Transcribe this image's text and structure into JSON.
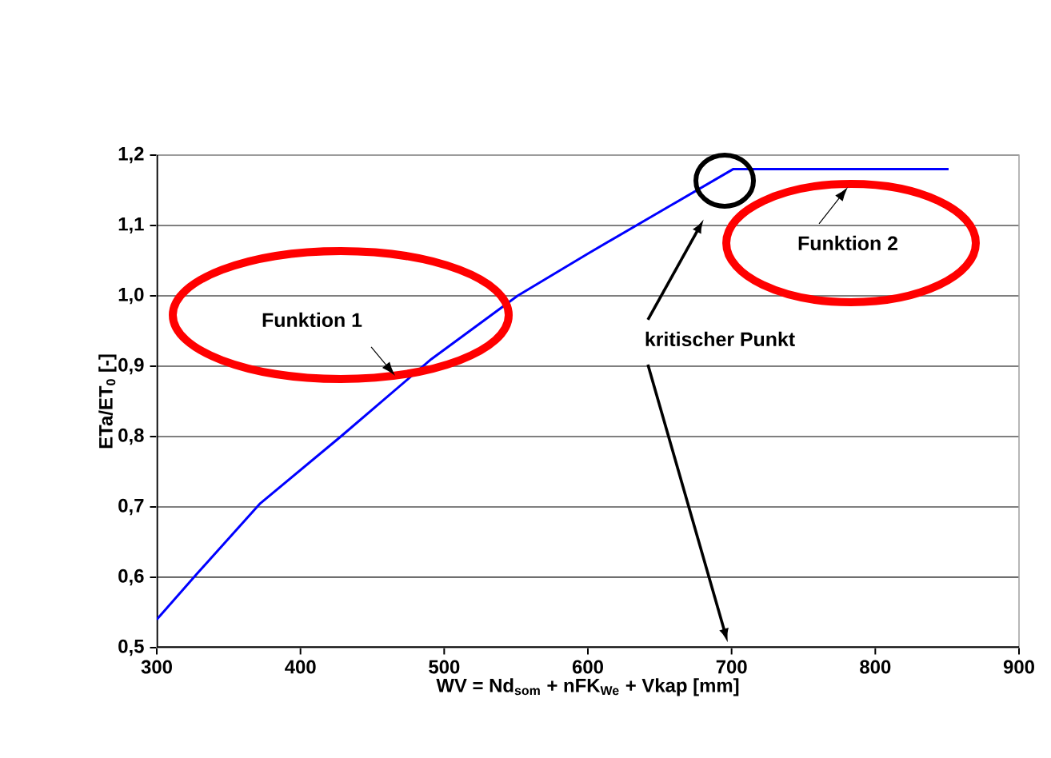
{
  "chart_data": {
    "type": "line",
    "xlabel": "WV = Nd$_{som}$ + nFK$_{We}$ + Vkap [mm]",
    "ylabel": "ETa/ET$_{0}$   [-]",
    "x": [
      300,
      328,
      372,
      428,
      491,
      551,
      600,
      659,
      701,
      851
    ],
    "series": [
      {
        "color": "#0000ff",
        "values": [
          0.54,
          0.605,
          0.705,
          0.8,
          0.91,
          1.0,
          1.06,
          1.13,
          1.18,
          1.18
        ]
      }
    ],
    "xlim": [
      300,
      900
    ],
    "ylim": [
      0.5,
      1.2
    ],
    "xticks": [
      300,
      400,
      500,
      600,
      700,
      800,
      900
    ],
    "yticks": [
      {
        "value": 0.5,
        "label": "0,5"
      },
      {
        "value": 0.6,
        "label": "0,6"
      },
      {
        "value": 0.7,
        "label": "0,7"
      },
      {
        "value": 0.8,
        "label": "0,8"
      },
      {
        "value": 0.9,
        "label": "0,9"
      },
      {
        "value": 1.0,
        "label": "1,0"
      },
      {
        "value": 1.1,
        "label": "1,1"
      },
      {
        "value": 1.2,
        "label": "1,2"
      }
    ],
    "grid": "y",
    "marker": "none",
    "line_style": "solid",
    "annotations": [
      "Funktion 1",
      "Funktion 2",
      "kritischer Punkt"
    ]
  }
}
